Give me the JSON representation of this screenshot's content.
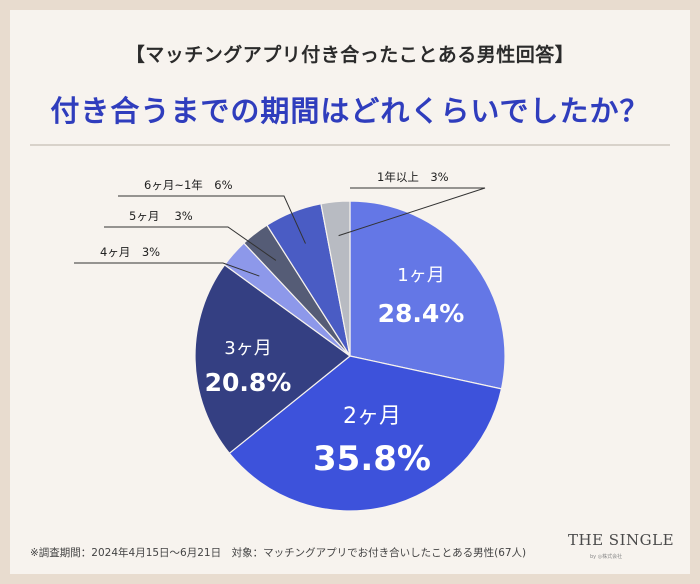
{
  "header": {
    "title": "【マッチングアプリ付き合ったことある男性回答】",
    "subtitle": "付き合うまでの期間はどれくらいでしたか？"
  },
  "chart_data": {
    "type": "pie",
    "title": "付き合うまでの期間はどれくらいでしたか？",
    "slices": [
      {
        "label": "1ヶ月",
        "value": 28.4,
        "value_label": "28.4%",
        "color": "#6477e6",
        "label_style": "inside"
      },
      {
        "label": "2ヶ月",
        "value": 35.8,
        "value_label": "35.8%",
        "color": "#3d52db",
        "label_style": "inside"
      },
      {
        "label": "3ヶ月",
        "value": 20.8,
        "value_label": "20.8%",
        "color": "#343f82",
        "label_style": "inside"
      },
      {
        "label": "4ヶ月",
        "value": 3,
        "value_label": "3%",
        "color": "#8d98ea",
        "label_style": "callout",
        "display": "4ヶ月　3%"
      },
      {
        "label": "5ヶ月",
        "value": 3,
        "value_label": "3%",
        "color": "#555c76",
        "label_style": "callout",
        "display": "5ヶ月　 3%"
      },
      {
        "label": "6ヶ月~1年",
        "value": 6,
        "value_label": "6%",
        "color": "#4a5cc4",
        "label_style": "callout",
        "display": "6ヶ月~1年　6%"
      },
      {
        "label": "1年以上",
        "value": 3,
        "value_label": "3%",
        "color": "#b8bbc2",
        "label_style": "callout",
        "display": "1年以上　3%"
      }
    ]
  },
  "footer": {
    "note": "※調査期間：2024年4月15日～6月21日　対象：マッチングアプリでお付き合いしたことある男性(67人)",
    "brand": "THE SINGLE",
    "brand_sub": "by ◎株式会社"
  }
}
